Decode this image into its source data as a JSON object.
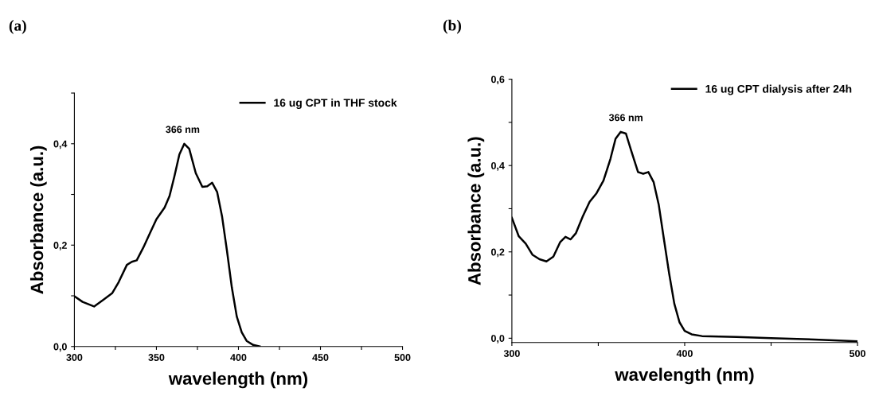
{
  "chart_data": [
    {
      "type": "line",
      "title": "(a)",
      "xlabel": "wavelength (nm)",
      "ylabel": "Absorbance (a.u.)",
      "xlim": [
        300,
        500
      ],
      "ylim": [
        0,
        0.5
      ],
      "xticks": [
        300,
        {
          "value": 325,
          "label": null
        },
        350,
        {
          "value": 375,
          "label": null
        },
        400,
        {
          "value": 425,
          "label": null
        },
        450,
        {
          "value": 475,
          "label": null
        },
        500
      ],
      "yticks": [
        {
          "value": 0,
          "label": "0,0"
        },
        {
          "value": 0.1,
          "label": null
        },
        {
          "value": 0.2,
          "label": "0,2"
        },
        {
          "value": 0.3,
          "label": null
        },
        {
          "value": 0.4,
          "label": "0,4"
        },
        {
          "value": 0.5,
          "label": null
        }
      ],
      "legend": "top right",
      "grid": false,
      "marker": "none",
      "line_style": "solid",
      "annotations": [
        {
          "text": "366 nm",
          "x": 366,
          "y": 0.4
        }
      ],
      "series": [
        {
          "name": "16 ug CPT in THF stock",
          "color": "#000000",
          "x": [
            300,
            305,
            312,
            318,
            323,
            327,
            332,
            335,
            338,
            342,
            346,
            350,
            355,
            358,
            361,
            364,
            367,
            370,
            374,
            378,
            381,
            384,
            387,
            390,
            393,
            396,
            399,
            402,
            405,
            409,
            413
          ],
          "values": [
            0.099,
            0.088,
            0.079,
            0.093,
            0.105,
            0.127,
            0.161,
            0.167,
            0.17,
            0.195,
            0.223,
            0.251,
            0.274,
            0.297,
            0.336,
            0.379,
            0.4,
            0.39,
            0.342,
            0.315,
            0.316,
            0.323,
            0.305,
            0.257,
            0.189,
            0.116,
            0.059,
            0.028,
            0.011,
            0.003,
            0.0
          ]
        }
      ]
    },
    {
      "type": "line",
      "title": "(b)",
      "xlabel": "wavelength (nm)",
      "ylabel": "Absorbance (a.u.)",
      "xlim": [
        300,
        500
      ],
      "ylim": [
        -0.01,
        0.6
      ],
      "xticks": [
        300,
        {
          "value": 350,
          "label": null
        },
        400,
        {
          "value": 450,
          "label": null
        },
        500
      ],
      "yticks": [
        {
          "value": 0,
          "label": "0,0"
        },
        {
          "value": 0.1,
          "label": null
        },
        {
          "value": 0.2,
          "label": "0,2"
        },
        {
          "value": 0.3,
          "label": null
        },
        {
          "value": 0.4,
          "label": "0,4"
        },
        {
          "value": 0.5,
          "label": null
        },
        {
          "value": 0.6,
          "label": "0,6"
        }
      ],
      "legend": "top right",
      "grid": false,
      "marker": "none",
      "line_style": "solid",
      "annotations": [
        {
          "text": "366 nm",
          "x": 366,
          "y": 0.478
        }
      ],
      "series": [
        {
          "name": "16 ug CPT dialysis after 24h",
          "color": "#000000",
          "x": [
            300,
            304,
            308,
            312,
            316,
            320,
            324,
            328,
            331,
            334,
            337,
            341,
            345,
            349,
            353,
            357,
            360,
            363,
            366,
            369,
            373,
            376,
            379,
            382,
            385,
            388,
            391,
            394,
            397,
            400,
            404,
            410,
            430,
            450,
            475,
            500
          ],
          "values": [
            0.279,
            0.236,
            0.219,
            0.193,
            0.183,
            0.178,
            0.189,
            0.223,
            0.235,
            0.229,
            0.243,
            0.282,
            0.316,
            0.336,
            0.365,
            0.415,
            0.462,
            0.478,
            0.474,
            0.435,
            0.385,
            0.381,
            0.385,
            0.362,
            0.309,
            0.229,
            0.15,
            0.08,
            0.037,
            0.017,
            0.009,
            0.005,
            0.003,
            0.0,
            -0.003,
            -0.007
          ]
        }
      ]
    }
  ]
}
